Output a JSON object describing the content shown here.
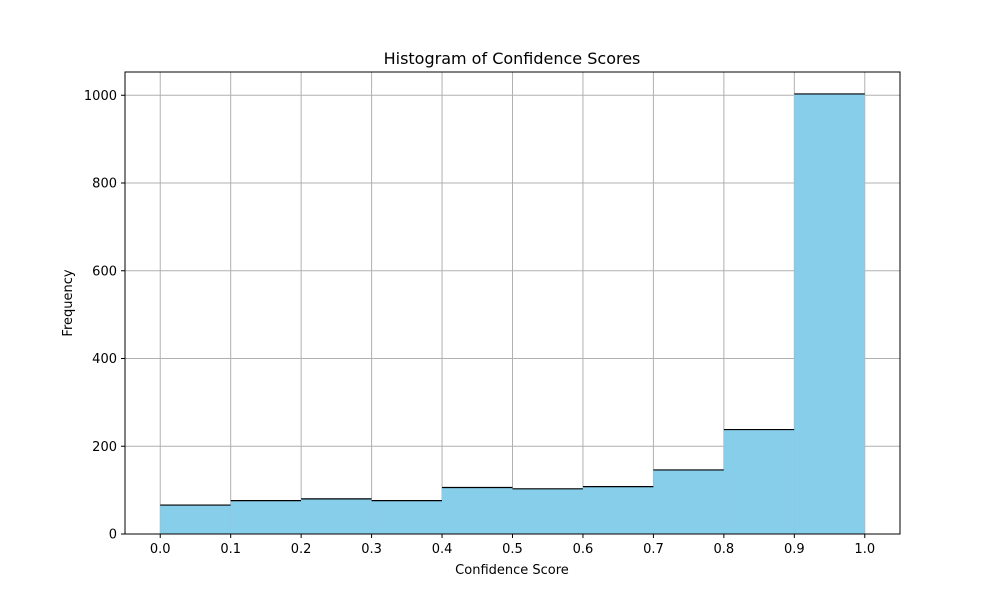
{
  "chart_data": {
    "type": "bar",
    "title": "Histogram of Confidence Scores",
    "xlabel": "Confidence Score",
    "ylabel": "Frequency",
    "bin_edges": [
      0.0,
      0.1,
      0.2,
      0.3,
      0.4,
      0.5,
      0.6,
      0.7,
      0.8,
      0.9,
      1.0
    ],
    "values": [
      66,
      76,
      80,
      76,
      106,
      103,
      108,
      146,
      238,
      1003
    ],
    "xlim": [
      -0.05,
      1.05
    ],
    "ylim": [
      0,
      1053
    ],
    "xticks": [
      0.0,
      0.1,
      0.2,
      0.3,
      0.4,
      0.5,
      0.6,
      0.7,
      0.8,
      0.9,
      1.0
    ],
    "xtick_labels": [
      "0.0",
      "0.1",
      "0.2",
      "0.3",
      "0.4",
      "0.5",
      "0.6",
      "0.7",
      "0.8",
      "0.9",
      "1.0"
    ],
    "yticks": [
      0,
      200,
      400,
      600,
      800,
      1000
    ],
    "ytick_labels": [
      "0",
      "200",
      "400",
      "600",
      "800",
      "1000"
    ],
    "grid": true,
    "bar_color": "#87CEEB",
    "edge_color": "#000000",
    "grid_color": "#b0b0b0"
  }
}
